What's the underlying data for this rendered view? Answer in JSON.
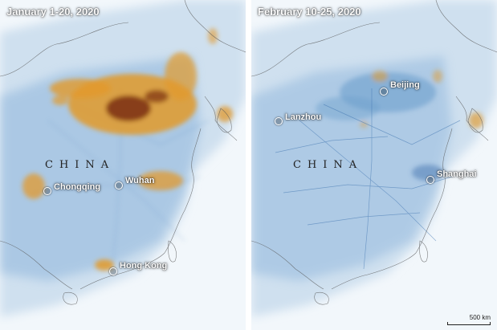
{
  "colors": {
    "ocean": "#f2f7fb",
    "land_haze": "#cfe0ef",
    "no2_low": "#6d9fcd",
    "no2_mid": "#3f74b0",
    "no2_high": "#e29a2b",
    "no2_peak": "#7a2f10",
    "border": "#555555"
  },
  "panels": [
    {
      "title": "January 1-20, 2020",
      "country_label": "CHINA",
      "cities": [
        {
          "name": "Chongqing"
        },
        {
          "name": "Wuhan"
        },
        {
          "name": "Hong Kong"
        }
      ]
    },
    {
      "title": "February 10-25, 2020",
      "country_label": "CHINA",
      "cities": [
        {
          "name": "Beijing"
        },
        {
          "name": "Lanzhou"
        },
        {
          "name": "Shanghai"
        }
      ]
    }
  ],
  "scale_bar": {
    "label": "500 km"
  }
}
